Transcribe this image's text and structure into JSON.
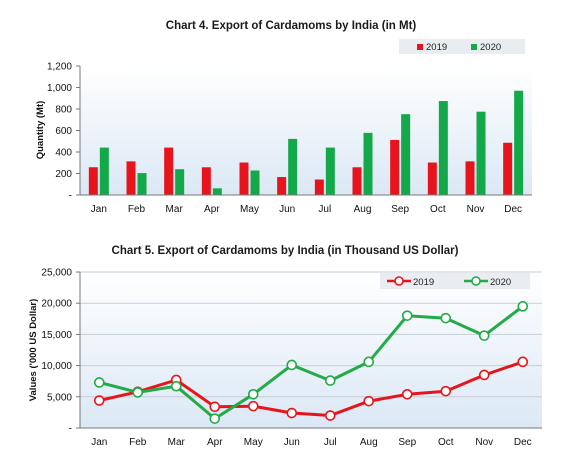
{
  "chart_data": [
    {
      "type": "bar",
      "title": "Chart 4. Export of Cardamoms by India (in Mt)",
      "xlabel": "",
      "ylabel": "Quantity (Mt)",
      "categories": [
        "Jan",
        "Feb",
        "Mar",
        "Apr",
        "May",
        "Jun",
        "Jul",
        "Aug",
        "Sep",
        "Oct",
        "Nov",
        "Dec"
      ],
      "series": [
        {
          "name": "2019",
          "color": "#e8141b",
          "values": [
            258,
            313,
            441,
            258,
            302,
            167,
            144,
            258,
            512,
            302,
            313,
            486
          ]
        },
        {
          "name": "2020",
          "color": "#13a84a",
          "values": [
            441,
            204,
            240,
            62,
            228,
            522,
            441,
            578,
            752,
            874,
            775,
            970
          ]
        }
      ],
      "ylim": [
        0,
        1200
      ],
      "yticks": [
        "-",
        "200",
        "400",
        "600",
        "800",
        "1,000",
        "1,200"
      ],
      "legend": "top-right",
      "grid": false
    },
    {
      "type": "line",
      "title": "Chart 5. Export of Cardamoms by India (in Thousand US Dollar)",
      "xlabel": "",
      "ylabel": "Values ('000 US Dollar)",
      "categories": [
        "Jan",
        "Feb",
        "Mar",
        "Apr",
        "May",
        "Jun",
        "Jul",
        "Aug",
        "Sep",
        "Oct",
        "Nov",
        "Dec"
      ],
      "series": [
        {
          "name": "2019",
          "color": "#e8141b",
          "values": [
            4400,
            5800,
            7700,
            3400,
            3500,
            2400,
            2000,
            4300,
            5400,
            5900,
            8500,
            10600
          ]
        },
        {
          "name": "2020",
          "color": "#22ab47",
          "values": [
            7300,
            5700,
            6700,
            1500,
            5400,
            10100,
            7600,
            10600,
            18000,
            17600,
            14800,
            19500
          ]
        }
      ],
      "ylim": [
        0,
        25000
      ],
      "yticks": [
        "-",
        "5,000",
        "10,000",
        "15,000",
        "20,000",
        "25,000"
      ],
      "legend": "top-right",
      "grid": true
    }
  ]
}
